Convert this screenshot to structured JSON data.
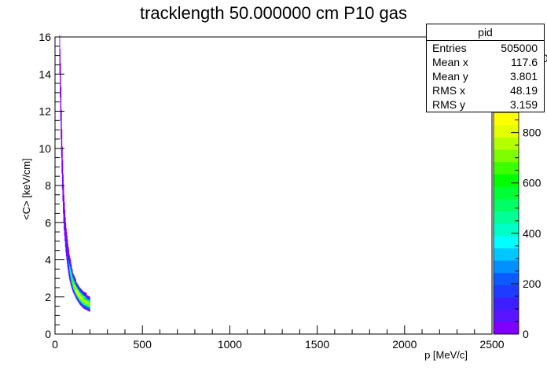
{
  "chart_data": {
    "type": "heatmap",
    "title": "tracklength 50.000000 cm P10 gas",
    "xlabel": "p [MeV/c]",
    "ylabel": "<C> [keV/cm]",
    "xlim": [
      0,
      2500
    ],
    "ylim": [
      0,
      16
    ],
    "x_ticks": [
      "0",
      "500",
      "1000",
      "1500",
      "2000",
      "2500"
    ],
    "y_ticks": [
      "0",
      "2",
      "4",
      "6",
      "8",
      "10",
      "12",
      "14",
      "16"
    ],
    "colorbar": {
      "range": [
        0,
        880
      ],
      "ticks": [
        "0",
        "200",
        "400",
        "600",
        "800"
      ],
      "colors": [
        "#7f00ff",
        "#5a14ff",
        "#3c1eff",
        "#1e3cff",
        "#0a5aff",
        "#0091ff",
        "#00c8ff",
        "#00ffff",
        "#00ffc8",
        "#00ff96",
        "#00ff64",
        "#00ff32",
        "#00ff00",
        "#3cff00",
        "#7dff00",
        "#b4ff00",
        "#e6ff00",
        "#ffff00"
      ]
    },
    "band": [
      {
        "p": 25,
        "lo": 14.0,
        "hi": 16.0,
        "peak": 10
      },
      {
        "p": 30,
        "lo": 11.5,
        "hi": 14.5,
        "peak": 15
      },
      {
        "p": 35,
        "lo": 9.5,
        "hi": 12.0,
        "peak": 20
      },
      {
        "p": 40,
        "lo": 7.8,
        "hi": 10.0,
        "peak": 25
      },
      {
        "p": 45,
        "lo": 6.5,
        "hi": 8.5,
        "peak": 35
      },
      {
        "p": 50,
        "lo": 5.6,
        "hi": 7.4,
        "peak": 45
      },
      {
        "p": 60,
        "lo": 4.4,
        "hi": 5.9,
        "peak": 80
      },
      {
        "p": 70,
        "lo": 3.6,
        "hi": 5.0,
        "peak": 150
      },
      {
        "p": 80,
        "lo": 3.0,
        "hi": 4.3,
        "peak": 300
      },
      {
        "p": 90,
        "lo": 2.6,
        "hi": 3.8,
        "peak": 500
      },
      {
        "p": 100,
        "lo": 2.3,
        "hi": 3.3,
        "peak": 700
      },
      {
        "p": 120,
        "lo": 1.9,
        "hi": 2.8,
        "peak": 880
      },
      {
        "p": 140,
        "lo": 1.6,
        "hi": 2.5,
        "peak": 860
      },
      {
        "p": 160,
        "lo": 1.4,
        "hi": 2.3,
        "peak": 820
      },
      {
        "p": 180,
        "lo": 1.3,
        "hi": 2.1,
        "peak": 780
      },
      {
        "p": 200,
        "lo": 1.2,
        "hi": 2.0,
        "peak": 750
      }
    ]
  },
  "stats": {
    "title": "pid",
    "rows": [
      {
        "label": "Entries",
        "value": "505000"
      },
      {
        "label": "Mean x",
        "value": "117.6"
      },
      {
        "label": "Mean y",
        "value": "3.801"
      },
      {
        "label": "RMS x",
        "value": "48.19"
      },
      {
        "label": "RMS y",
        "value": "3.159"
      }
    ]
  },
  "colorbar_clipped_label": "00"
}
